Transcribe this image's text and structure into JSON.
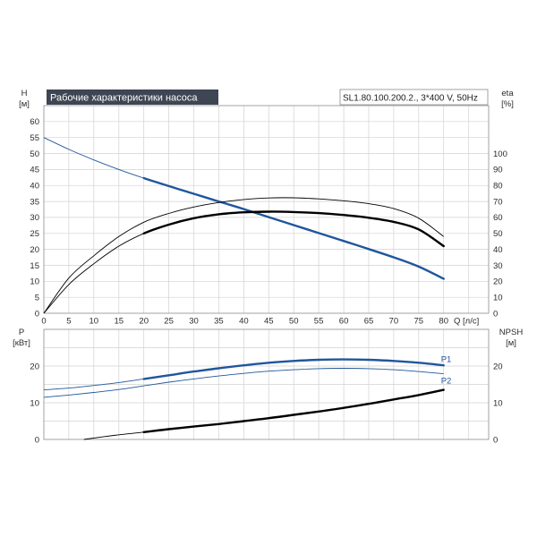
{
  "colors": {
    "title_bar": "#3e4553"
  },
  "chart_data": [
    {
      "type": "line",
      "title": "Рабочие характеристики насоса",
      "model_label": "SL1.80.100.200.2., 3*400 V, 50Hz",
      "xlabel": "Q [л/с]",
      "ylabel_left": {
        "symbol": "H",
        "unit": "[м]"
      },
      "ylabel_right": {
        "symbol": "eta",
        "unit": "[%]"
      },
      "xlim": [
        0,
        89
      ],
      "ylim_left": [
        0,
        65
      ],
      "ylim_right": [
        0,
        130
      ],
      "x_ticks": [
        0,
        5,
        10,
        15,
        20,
        25,
        30,
        35,
        40,
        45,
        50,
        55,
        60,
        65,
        70,
        75,
        80
      ],
      "y_ticks_left": [
        0,
        5,
        10,
        15,
        20,
        25,
        30,
        35,
        40,
        45,
        50,
        55,
        60
      ],
      "y_ticks_right": [
        0,
        10,
        20,
        30,
        40,
        50,
        60,
        70,
        80,
        90,
        100
      ],
      "grid": true,
      "highlight_q_range": [
        20,
        80
      ],
      "x": [
        0,
        5,
        10,
        15,
        20,
        25,
        30,
        35,
        40,
        45,
        50,
        55,
        60,
        65,
        70,
        75,
        80
      ],
      "left_axis_series": [
        {
          "color": "#1f569d",
          "highlighted": true,
          "values": [
            55,
            51.3,
            48.0,
            45.0,
            42.3,
            39.8,
            37.4,
            35.0,
            32.6,
            30.1,
            27.6,
            25.1,
            22.6,
            20.1,
            17.5,
            14.6,
            10.8
          ]
        }
      ],
      "right_axis_series": [
        {
          "color": "#000000",
          "highlighted": false,
          "values": [
            0,
            22,
            36,
            48,
            57,
            62.5,
            66.5,
            69.3,
            71.2,
            72.2,
            72.3,
            71.6,
            70.4,
            68.6,
            65.5,
            59.5,
            48.0
          ]
        },
        {
          "color": "#000000",
          "highlighted": true,
          "values": [
            0,
            18,
            31,
            42,
            50,
            55.5,
            59.5,
            62,
            63.2,
            63.6,
            63.4,
            62.7,
            61.5,
            59.8,
            57.2,
            52.5,
            42.0
          ]
        }
      ]
    },
    {
      "type": "line",
      "ylabel_left": {
        "symbol": "P",
        "unit": "[кВт]"
      },
      "ylabel_right": {
        "symbol": "NPSH",
        "unit": "[м]"
      },
      "xlim": [
        0,
        89
      ],
      "ylim_left": [
        0,
        30
      ],
      "ylim_right": [
        0,
        30
      ],
      "y_ticks_left": [
        0,
        10,
        20
      ],
      "y_ticks_right": [
        0,
        10,
        20
      ],
      "grid": true,
      "highlight_q_range": [
        20,
        80
      ],
      "x": [
        0,
        5,
        10,
        15,
        20,
        25,
        30,
        35,
        40,
        45,
        50,
        55,
        60,
        65,
        70,
        75,
        80
      ],
      "left_axis_series": [
        {
          "name": "P1",
          "color": "#1f569d",
          "highlighted": true,
          "values": [
            13.5,
            14.0,
            14.7,
            15.5,
            16.5,
            17.5,
            18.5,
            19.4,
            20.2,
            20.9,
            21.4,
            21.7,
            21.8,
            21.7,
            21.4,
            20.9,
            20.2
          ]
        },
        {
          "name": "P2",
          "color": "#1f569d",
          "highlighted": false,
          "values": [
            11.5,
            12.1,
            12.8,
            13.6,
            14.6,
            15.6,
            16.5,
            17.3,
            18.0,
            18.6,
            19.0,
            19.3,
            19.4,
            19.3,
            19.0,
            18.5,
            17.9
          ]
        }
      ],
      "right_axis_series": [
        {
          "color": "#000000",
          "highlighted": true,
          "x": [
            8,
            14,
            20,
            25,
            30,
            35,
            40,
            45,
            50,
            55,
            60,
            65,
            70,
            75,
            80
          ],
          "values": [
            0,
            1.1,
            2.0,
            2.8,
            3.5,
            4.2,
            5.0,
            5.8,
            6.7,
            7.6,
            8.6,
            9.7,
            10.9,
            12.1,
            13.5
          ]
        }
      ]
    }
  ]
}
